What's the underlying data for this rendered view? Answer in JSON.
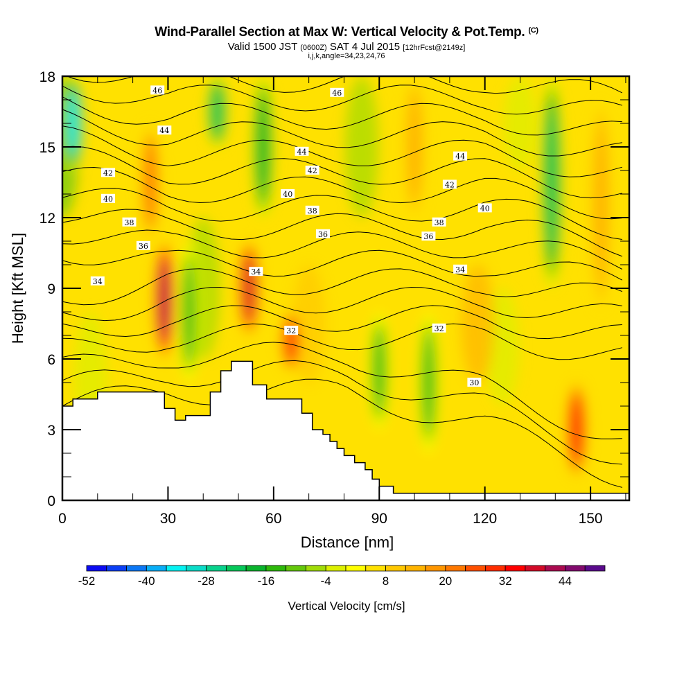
{
  "chart_data": {
    "type": "heatmap",
    "title": "Wind-Parallel Section at Max W: Vertical Velocity & Pot.Temp.",
    "title_mark": "(C)",
    "subtitle": {
      "prefix": "Valid 1500 JST",
      "utc": "(0600Z)",
      "date": "SAT 4 Jul 2015",
      "forecast": "[12hrFcst@2149z]"
    },
    "section_info": "i,j,k,angle=34,23,24,76",
    "xlabel": "Distance [nm]",
    "ylabel": "Height [Kft MSL]",
    "xlim": [
      0,
      161
    ],
    "ylim": [
      0,
      18
    ],
    "xticks": [
      0,
      30,
      60,
      90,
      120,
      150
    ],
    "yticks": [
      0,
      3,
      6,
      9,
      12,
      15,
      18
    ],
    "colorbar": {
      "title": "Vertical Velocity [cm/s]",
      "tick_labels": [
        "-52",
        "-40",
        "-28",
        "-16",
        "-4",
        "8",
        "20",
        "32",
        "44"
      ],
      "min": -52,
      "step": 4,
      "colors": [
        "#0b0bf2",
        "#0b3ff5",
        "#0b77f5",
        "#08aef7",
        "#05f2f2",
        "#0bdcc8",
        "#08d28c",
        "#06c85a",
        "#0ab42d",
        "#2db90b",
        "#64c80b",
        "#a0dc08",
        "#dcf000",
        "#ffff00",
        "#ffe100",
        "#ffc800",
        "#ffb400",
        "#ff9600",
        "#ff7800",
        "#ff5000",
        "#ff2d00",
        "#ff0000",
        "#d20a28",
        "#aa0a50",
        "#820a6e",
        "#5a0a8c"
      ]
    },
    "vertical_velocity_field": {
      "units": "cm/s",
      "features": [
        {
          "type": "updraft",
          "x_nm": 29,
          "y_kft_range": [
            6,
            11
          ],
          "peak": 40
        },
        {
          "type": "updraft",
          "x_nm": 53,
          "y_kft_range": [
            7,
            11
          ],
          "peak": 36
        },
        {
          "type": "updraft",
          "x_nm": 65,
          "y_kft_range": [
            5.5,
            8
          ],
          "peak": 30
        },
        {
          "type": "updraft",
          "x_nm": 146,
          "y_kft_range": [
            1,
            5
          ],
          "peak": 32
        },
        {
          "type": "updraft",
          "x_nm": 25,
          "y_kft_range": [
            11,
            16
          ],
          "peak": 22
        },
        {
          "type": "updraft",
          "x_nm": 100,
          "y_kft_range": [
            12,
            18
          ],
          "peak": 14
        },
        {
          "type": "updraft",
          "x_nm": 153,
          "y_kft_range": [
            8,
            17
          ],
          "peak": 14
        },
        {
          "type": "downdraft",
          "x_nm": 3,
          "y_kft_range": [
            14,
            18
          ],
          "peak": -36
        },
        {
          "type": "downdraft",
          "x_nm": 44,
          "y_kft_range": [
            15,
            18
          ],
          "peak": -22
        },
        {
          "type": "downdraft",
          "x_nm": 57,
          "y_kft_range": [
            12,
            18
          ],
          "peak": -18
        },
        {
          "type": "downdraft",
          "x_nm": 139,
          "y_kft_range": [
            9,
            18
          ],
          "peak": -24
        },
        {
          "type": "downdraft",
          "x_nm": 90,
          "y_kft_range": [
            3,
            8
          ],
          "peak": -14
        },
        {
          "type": "downdraft",
          "x_nm": 104,
          "y_kft_range": [
            2,
            8
          ],
          "peak": -16
        },
        {
          "type": "downdraft",
          "x_nm": 36,
          "y_kft_range": [
            5,
            11
          ],
          "peak": -14
        }
      ]
    },
    "potential_temperature_contours": {
      "units": "C",
      "labels": [
        {
          "value": "46",
          "x_nm": 27,
          "y_kft": 17.4
        },
        {
          "value": "46",
          "x_nm": 78,
          "y_kft": 17.3
        },
        {
          "value": "44",
          "x_nm": 29,
          "y_kft": 15.7
        },
        {
          "value": "44",
          "x_nm": 68,
          "y_kft": 14.8
        },
        {
          "value": "44",
          "x_nm": 113,
          "y_kft": 14.6
        },
        {
          "value": "42",
          "x_nm": 13,
          "y_kft": 13.9
        },
        {
          "value": "42",
          "x_nm": 71,
          "y_kft": 14.0
        },
        {
          "value": "42",
          "x_nm": 110,
          "y_kft": 13.4
        },
        {
          "value": "40",
          "x_nm": 13,
          "y_kft": 12.8
        },
        {
          "value": "40",
          "x_nm": 64,
          "y_kft": 13.0
        },
        {
          "value": "40",
          "x_nm": 120,
          "y_kft": 12.4
        },
        {
          "value": "38",
          "x_nm": 19,
          "y_kft": 11.8
        },
        {
          "value": "38",
          "x_nm": 71,
          "y_kft": 12.3
        },
        {
          "value": "38",
          "x_nm": 107,
          "y_kft": 11.8
        },
        {
          "value": "36",
          "x_nm": 23,
          "y_kft": 10.8
        },
        {
          "value": "36",
          "x_nm": 74,
          "y_kft": 11.3
        },
        {
          "value": "36",
          "x_nm": 104,
          "y_kft": 11.2
        },
        {
          "value": "34",
          "x_nm": 10,
          "y_kft": 9.3
        },
        {
          "value": "34",
          "x_nm": 55,
          "y_kft": 9.7
        },
        {
          "value": "34",
          "x_nm": 113,
          "y_kft": 9.8
        },
        {
          "value": "32",
          "x_nm": 65,
          "y_kft": 7.2
        },
        {
          "value": "32",
          "x_nm": 107,
          "y_kft": 7.3
        },
        {
          "value": "30",
          "x_nm": 117,
          "y_kft": 5.0
        }
      ],
      "levels": [
        30,
        31,
        32,
        33,
        34,
        35,
        36,
        37,
        38,
        39,
        40,
        41,
        42,
        43,
        44,
        45,
        46,
        47
      ]
    },
    "terrain_profile": {
      "x_nm": [
        0,
        3,
        3,
        10,
        10,
        29,
        29,
        32,
        32,
        35,
        35,
        42,
        42,
        45,
        45,
        48,
        48,
        54,
        54,
        58,
        58,
        68,
        68,
        71,
        71,
        74,
        74,
        76,
        76,
        78,
        78,
        80,
        80,
        83,
        83,
        86,
        86,
        88,
        88,
        90,
        90,
        94,
        94,
        161
      ],
      "y_kft": [
        4.0,
        4.0,
        4.3,
        4.3,
        4.6,
        4.6,
        3.9,
        3.9,
        3.4,
        3.4,
        3.6,
        3.6,
        4.6,
        4.6,
        5.5,
        5.5,
        5.9,
        5.9,
        4.9,
        4.9,
        4.3,
        4.3,
        3.7,
        3.7,
        3.0,
        3.0,
        2.8,
        2.8,
        2.5,
        2.5,
        2.2,
        2.2,
        1.9,
        1.9,
        1.6,
        1.6,
        1.3,
        1.3,
        0.9,
        0.9,
        0.6,
        0.6,
        0.3,
        0.3
      ]
    }
  }
}
